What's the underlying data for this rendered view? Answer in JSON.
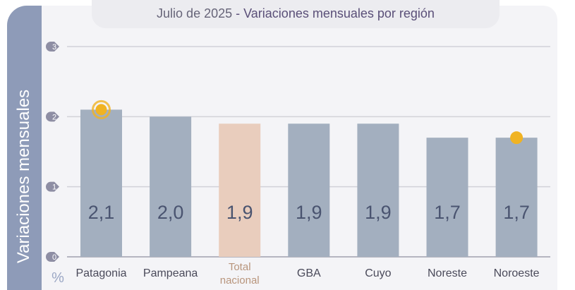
{
  "chart_data": {
    "type": "bar",
    "title_date": "Julio de 2025",
    "title_sep": " - ",
    "title": "Variaciones mensuales por región",
    "ylabel": "Variaciones  mensuales",
    "yunit": "%",
    "ylim": [
      0,
      3
    ],
    "yticks": [
      "0",
      "1",
      "2",
      "3"
    ],
    "grid": true,
    "categories": [
      "Patagonia",
      "Pampeana",
      "Total nacional",
      "GBA",
      "Cuyo",
      "Noreste",
      "Noroeste"
    ],
    "values": [
      2.1,
      2.0,
      1.9,
      1.9,
      1.9,
      1.7,
      1.7
    ],
    "value_labels": [
      "2,1",
      "2,0",
      "1,9",
      "1,9",
      "1,9",
      "1,7",
      "1,7"
    ],
    "highlight_category": "Total nacional",
    "markers": [
      {
        "category": "Patagonia",
        "style": "ring"
      },
      {
        "category": "Noroeste",
        "style": "dot"
      }
    ],
    "colors": {
      "bar": "#a3afbf",
      "highlight": "#e9cdbd",
      "highlight_text": "#b8957c",
      "marker": "#f0b323",
      "value_text": "#4a5470",
      "axis_badge": "#8e8ea4"
    }
  }
}
